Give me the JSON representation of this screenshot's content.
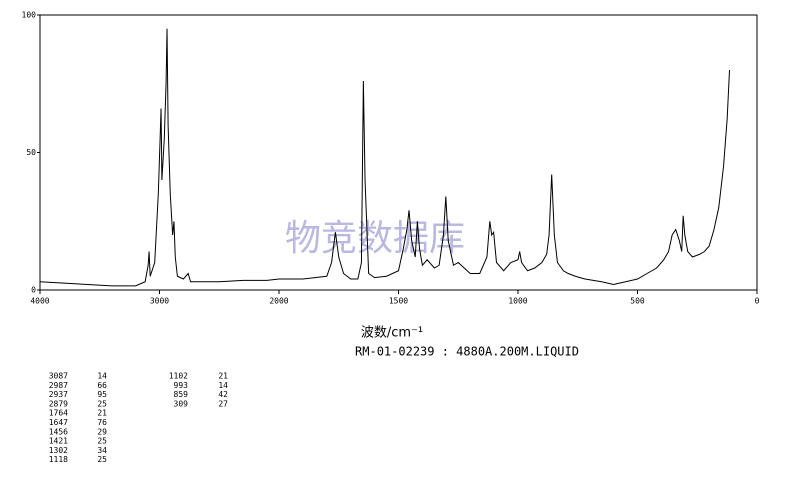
{
  "chart_data": {
    "type": "line",
    "xlabel": "波数/cm⁻¹",
    "title": "RM-01-02239 : 4880A.200M.LIQUID",
    "watermark": "物竞数据库",
    "xlim": [
      4000,
      0
    ],
    "xticks": [
      4000,
      3000,
      2000,
      1500,
      1000,
      500,
      0
    ],
    "ylim": [
      0,
      100
    ],
    "yticks": [
      0,
      50,
      100
    ],
    "series": [
      {
        "color": "#000000",
        "x": [
          4000,
          3800,
          3600,
          3400,
          3200,
          3120,
          3095,
          3087,
          3078,
          3040,
          3010,
          2995,
          2987,
          2980,
          2960,
          2945,
          2937,
          2928,
          2910,
          2890,
          2879,
          2868,
          2850,
          2800,
          2760,
          2740,
          2700,
          2500,
          2300,
          2100,
          2000,
          1900,
          1850,
          1800,
          1780,
          1764,
          1750,
          1730,
          1700,
          1670,
          1655,
          1647,
          1640,
          1625,
          1600,
          1550,
          1500,
          1480,
          1465,
          1456,
          1445,
          1430,
          1421,
          1412,
          1400,
          1380,
          1350,
          1330,
          1312,
          1302,
          1292,
          1270,
          1250,
          1200,
          1160,
          1130,
          1118,
          1110,
          1102,
          1090,
          1060,
          1030,
          1000,
          993,
          985,
          960,
          930,
          900,
          880,
          870,
          859,
          848,
          835,
          810,
          790,
          760,
          720,
          650,
          600,
          550,
          500,
          460,
          420,
          390,
          370,
          355,
          340,
          325,
          315,
          309,
          302,
          290,
          270,
          240,
          220,
          200,
          180,
          160,
          140,
          125,
          115
        ],
        "values": [
          3,
          2.5,
          2,
          1.5,
          1.5,
          3,
          9,
          14,
          5,
          10,
          35,
          55,
          66,
          40,
          55,
          75,
          95,
          60,
          35,
          20,
          25,
          12,
          5,
          4,
          6,
          3,
          3,
          3,
          3.5,
          3.5,
          4,
          4,
          4.5,
          5,
          10,
          21,
          12,
          6,
          4,
          4,
          10,
          76,
          40,
          6,
          4.5,
          5,
          7,
          15,
          22,
          29,
          18,
          12,
          25,
          15,
          9,
          11,
          8,
          9,
          20,
          34,
          18,
          9,
          10,
          6,
          6,
          12,
          25,
          20,
          21,
          10,
          7,
          10,
          11,
          14,
          10,
          7,
          8,
          10,
          13,
          20,
          42,
          20,
          10,
          7,
          6,
          5,
          4,
          3,
          2,
          3,
          4,
          6,
          8,
          11,
          14,
          20,
          22,
          18,
          14,
          27,
          20,
          14,
          12,
          13,
          14,
          16,
          22,
          30,
          45,
          62,
          80
        ]
      }
    ],
    "peak_table": {
      "wavenumbers": [
        3087,
        2987,
        2937,
        2879,
        1764,
        1647,
        1456,
        1421,
        1302,
        1118,
        1102,
        993,
        859,
        309
      ],
      "intensities": [
        14,
        66,
        95,
        25,
        21,
        76,
        29,
        25,
        34,
        25,
        21,
        14,
        42,
        27
      ]
    }
  }
}
